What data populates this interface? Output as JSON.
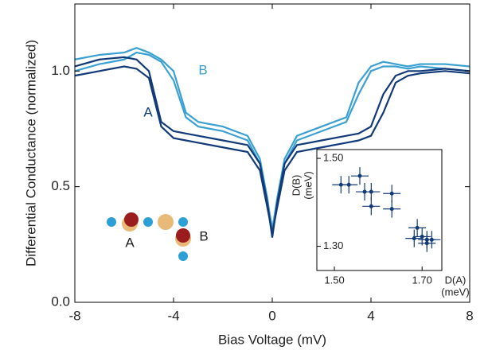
{
  "chart_data": [
    {
      "type": "line",
      "xlabel": "Bias Voltage (mV)",
      "ylabel": "Differential Conductance (normalized)",
      "x": [
        -8,
        -7,
        -6,
        -5.5,
        -5,
        -4.5,
        -4,
        -3.5,
        -3,
        -2,
        -1,
        -0.5,
        -0.2,
        0,
        0.2,
        0.5,
        1,
        2,
        3,
        3.5,
        4,
        4.5,
        5,
        5.5,
        6,
        7,
        8
      ],
      "series": [
        {
          "color": "#3aa0d2",
          "values": [
            1.05,
            1.07,
            1.08,
            1.1,
            1.08,
            1.05,
            1.0,
            0.82,
            0.78,
            0.76,
            0.72,
            0.62,
            0.45,
            0.3,
            0.45,
            0.62,
            0.72,
            0.76,
            0.8,
            0.95,
            1.02,
            1.04,
            1.03,
            1.02,
            1.03,
            1.03,
            1.02
          ]
        },
        {
          "color": "#3aa0d2",
          "values": [
            1.0,
            1.03,
            1.05,
            1.08,
            1.07,
            1.04,
            0.96,
            0.8,
            0.76,
            0.74,
            0.7,
            0.6,
            0.44,
            0.32,
            0.44,
            0.6,
            0.7,
            0.74,
            0.78,
            0.9,
            1.0,
            1.02,
            1.02,
            1.01,
            1.02,
            1.01,
            1.0
          ]
        },
        {
          "color": "#123a78",
          "values": [
            1.02,
            1.05,
            1.06,
            1.05,
            1.0,
            0.78,
            0.74,
            0.73,
            0.72,
            0.7,
            0.68,
            0.6,
            0.43,
            0.28,
            0.43,
            0.6,
            0.68,
            0.7,
            0.72,
            0.73,
            0.76,
            0.9,
            0.98,
            1.0,
            1.0,
            1.01,
            1.0
          ]
        },
        {
          "color": "#123a78",
          "values": [
            0.98,
            1.0,
            1.02,
            1.01,
            0.97,
            0.76,
            0.71,
            0.7,
            0.69,
            0.67,
            0.65,
            0.57,
            0.41,
            0.3,
            0.41,
            0.57,
            0.65,
            0.67,
            0.69,
            0.7,
            0.72,
            0.82,
            0.95,
            0.98,
            0.99,
            1.0,
            0.99
          ]
        }
      ],
      "annotations": [
        {
          "text": "B",
          "color": "#3aa0d2"
        },
        {
          "text": "A",
          "color": "#123a78"
        }
      ],
      "diagram_labels": [
        "A",
        "B"
      ],
      "xlim": [
        -8,
        8
      ],
      "xticks": [
        -8,
        -4,
        0,
        4,
        8
      ],
      "ylim": [
        0,
        1.29
      ],
      "yticks": [
        {
          "value": 0,
          "label": "0.0"
        },
        0.5,
        {
          "value": 1,
          "label": "1.0"
        }
      ]
    },
    {
      "type": "scatter",
      "xlabel": [
        "D(A)",
        "(meV)"
      ],
      "ylabel": [
        "D(B)",
        "(meV)"
      ],
      "color": "#123a78",
      "x": [
        1.515,
        1.533,
        1.558,
        1.569,
        1.584,
        1.584,
        1.631,
        1.631,
        1.682,
        1.689,
        1.7,
        1.711,
        1.722,
        1.711
      ],
      "values": [
        1.44,
        1.44,
        1.46,
        1.424,
        1.424,
        1.391,
        1.42,
        1.385,
        1.318,
        1.342,
        1.322,
        1.315,
        1.315,
        1.307
      ],
      "xerr": [
        0.02,
        0.02,
        0.02,
        0.02,
        0.02,
        0.02,
        0.02,
        0.02,
        0.02,
        0.02,
        0.02,
        0.02,
        0.02,
        0.02
      ],
      "yerr": [
        0.02,
        0.02,
        0.02,
        0.02,
        0.02,
        0.02,
        0.02,
        0.02,
        0.02,
        0.02,
        0.02,
        0.02,
        0.02,
        0.02
      ],
      "xlim": [
        1.46,
        1.745
      ],
      "xticks": [
        {
          "value": 1.5,
          "label": "1.50"
        },
        {
          "value": 1.7,
          "label": "1.70"
        }
      ],
      "ylim": [
        1.245,
        1.52
      ],
      "yticks": [
        {
          "value": 1.3,
          "label": "1.30"
        },
        {
          "value": 1.5,
          "label": "1.50"
        }
      ]
    }
  ]
}
